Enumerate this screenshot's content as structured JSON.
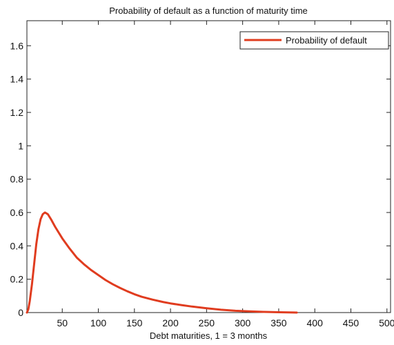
{
  "chart_data": {
    "type": "line",
    "title": "Probability of default as a function of maturity time",
    "xlabel": "Debt maturities, 1 = 3 months",
    "ylabel": "",
    "xlim": [
      1,
      505
    ],
    "ylim": [
      0,
      1.75
    ],
    "x_ticks": [
      50,
      100,
      150,
      200,
      250,
      300,
      350,
      400,
      450,
      500
    ],
    "y_ticks": [
      0,
      0.2,
      0.4,
      0.6,
      0.8,
      1,
      1.2,
      1.4,
      1.6
    ],
    "x_tick_labels": [
      "50",
      "100",
      "150",
      "200",
      "250",
      "300",
      "350",
      "400",
      "450",
      "500"
    ],
    "y_tick_labels": [
      "0",
      "0.2",
      "0.4",
      "0.6",
      "0.8",
      "1",
      "1.2",
      "1.4",
      "1.6"
    ],
    "grid": false,
    "legend_position": "top-right",
    "series": [
      {
        "name": "Probability of default",
        "color": "#e03c1f",
        "x": [
          1,
          3,
          5,
          8,
          11,
          14,
          17,
          20,
          23,
          26,
          30,
          35,
          40,
          50,
          60,
          70,
          80,
          90,
          100,
          110,
          120,
          130,
          140,
          150,
          160,
          175,
          190,
          200,
          215,
          230,
          250,
          270,
          290,
          310,
          330,
          350,
          370,
          375
        ],
        "y": [
          0,
          0.02,
          0.07,
          0.17,
          0.29,
          0.41,
          0.5,
          0.56,
          0.59,
          0.6,
          0.59,
          0.555,
          0.515,
          0.445,
          0.385,
          0.33,
          0.29,
          0.255,
          0.225,
          0.195,
          0.17,
          0.148,
          0.128,
          0.11,
          0.095,
          0.078,
          0.063,
          0.055,
          0.045,
          0.036,
          0.026,
          0.017,
          0.011,
          0.007,
          0.004,
          0.002,
          0.0005,
          0
        ]
      }
    ]
  }
}
